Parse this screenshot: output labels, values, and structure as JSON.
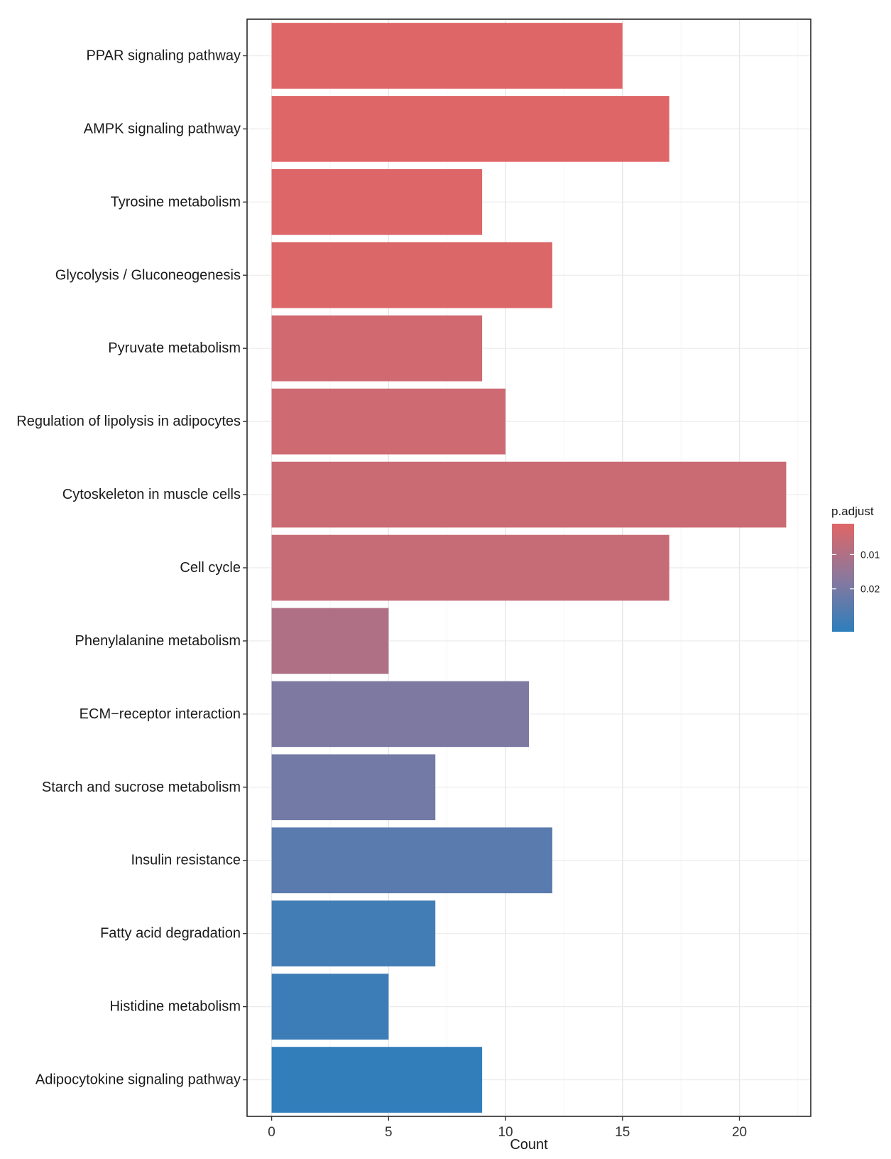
{
  "chart_data": {
    "type": "bar",
    "orientation": "horizontal",
    "title": "",
    "xlabel": "Count",
    "ylabel": "",
    "xlim": [
      -1.05,
      23.05
    ],
    "xticks": [
      0,
      5,
      10,
      15,
      20
    ],
    "grid": true,
    "legend_position": "right",
    "categories": [
      "PPAR signaling pathway",
      "AMPK signaling pathway",
      "Tyrosine metabolism",
      "Glycolysis / Gluconeogenesis",
      "Pyruvate metabolism",
      "Regulation of lipolysis in adipocytes",
      "Cytoskeleton in muscle cells",
      "Cell cycle",
      "Phenylalanine metabolism",
      "ECM−receptor interaction",
      "Starch and sucrose metabolism",
      "Insulin resistance",
      "Fatty acid degradation",
      "Histidine metabolism",
      "Adipocytokine signaling pathway"
    ],
    "values": [
      15,
      17,
      9,
      12,
      9,
      10,
      22,
      17,
      5,
      11,
      7,
      12,
      7,
      5,
      9
    ],
    "p_adjust": [
      0.0012,
      0.0014,
      0.0016,
      0.0018,
      0.004,
      0.0045,
      0.005,
      0.006,
      0.01,
      0.019,
      0.021,
      0.025,
      0.029,
      0.03,
      0.032
    ],
    "color_legend": {
      "title": "p.adjust",
      "ticks": [
        0.01,
        0.02
      ],
      "tick_labels": [
        "0.01",
        "0.02"
      ],
      "range": [
        0.001,
        0.0325
      ],
      "low_color": "#e06666",
      "mid_color": "#8b789d",
      "high_color": "#2e7ebc"
    }
  }
}
